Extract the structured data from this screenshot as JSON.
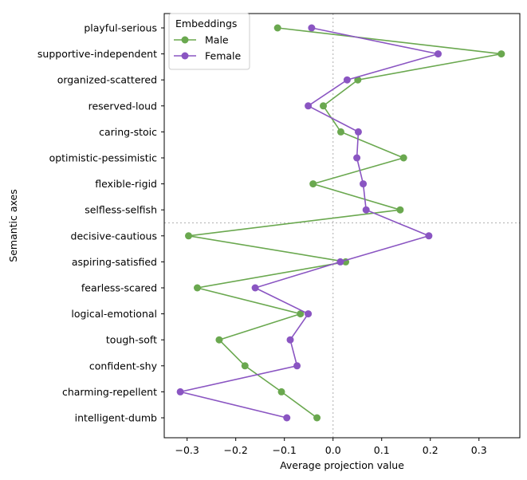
{
  "chart_data": {
    "type": "line",
    "orientation": "horizontal",
    "xlabel": "Average projection value",
    "ylabel": "Semantic axes",
    "xlim": [
      -0.347,
      0.384
    ],
    "xticks": [
      -0.3,
      -0.2,
      -0.1,
      0.0,
      0.1,
      0.2,
      0.3
    ],
    "xtick_labels": [
      "−0.3",
      "−0.2",
      "−0.1",
      "0.0",
      "0.1",
      "0.2",
      "0.3"
    ],
    "categories": [
      "playful-serious",
      "supportive-independent",
      "organized-scattered",
      "reserved-loud",
      "caring-stoic",
      "optimistic-pessimistic",
      "flexible-rigid",
      "selfless-selfish",
      "decisive-cautious",
      "aspiring-satisfied",
      "fearless-scared",
      "logical-emotional",
      "tough-soft",
      "confident-shy",
      "charming-repellent",
      "intelligent-dumb"
    ],
    "series": [
      {
        "name": "Male",
        "color": "#6aa84f",
        "values": [
          -0.114,
          0.346,
          0.051,
          -0.02,
          0.016,
          0.145,
          -0.041,
          0.138,
          -0.297,
          0.026,
          -0.279,
          -0.067,
          -0.234,
          -0.181,
          -0.106,
          -0.033
        ]
      },
      {
        "name": "Female",
        "color": "#8a55c2",
        "values": [
          -0.044,
          0.216,
          0.029,
          -0.051,
          0.052,
          0.049,
          0.062,
          0.068,
          0.197,
          0.015,
          -0.16,
          -0.051,
          -0.088,
          -0.074,
          -0.314,
          -0.095
        ]
      }
    ],
    "legend": {
      "title": "Embeddings",
      "placement": "top-left"
    },
    "reference_lines": {
      "vertical_x": 0.0,
      "horizontal_between": [
        "selfless-selfish",
        "decisive-cautious"
      ]
    },
    "grid": false
  }
}
